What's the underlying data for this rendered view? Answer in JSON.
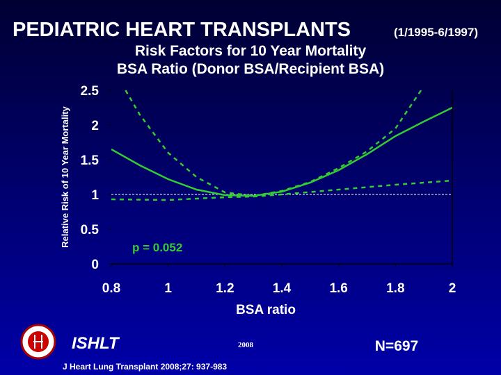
{
  "chart_data": {
    "type": "line",
    "title": "PEDIATRIC HEART TRANSPLANTS",
    "title_period": "(1/1995-6/1997)",
    "subtitle": "Risk Factors for 10 Year Mortality",
    "subtitle2": "BSA Ratio (Donor BSA/Recipient BSA)",
    "y_label": "Relative Risk of 10 Year Mortality",
    "x_label": "BSA ratio",
    "annotation": "p = 0.052",
    "xlim": [
      0.8,
      2
    ],
    "xticks": [
      0.8,
      1,
      1.2,
      1.4,
      1.6,
      1.8,
      2
    ],
    "ylim": [
      0,
      2.5
    ],
    "yticks": [
      0,
      0.5,
      1,
      1.5,
      2,
      2.5
    ],
    "reference_line": 1,
    "series": [
      {
        "style": "solid",
        "color": "#33cc33",
        "x": [
          0.8,
          0.9,
          1.0,
          1.1,
          1.2,
          1.3,
          1.4,
          1.5,
          1.6,
          1.7,
          1.8,
          1.9,
          2.0
        ],
        "values": [
          1.65,
          1.42,
          1.22,
          1.07,
          0.99,
          0.98,
          1.04,
          1.17,
          1.35,
          1.58,
          1.84,
          2.05,
          2.25
        ]
      },
      {
        "style": "dashed",
        "color": "#33cc33",
        "x": [
          0.85,
          0.9,
          1.0,
          1.1,
          1.2,
          1.3,
          1.4,
          1.5,
          1.6,
          1.7,
          1.8,
          1.89
        ],
        "values": [
          2.5,
          2.15,
          1.6,
          1.25,
          1.03,
          0.98,
          1.05,
          1.18,
          1.38,
          1.62,
          1.95,
          2.5
        ]
      },
      {
        "style": "dashed",
        "color": "#33cc33",
        "x": [
          0.8,
          1.0,
          1.2,
          1.3,
          1.4,
          1.6,
          1.8,
          2.0
        ],
        "values": [
          0.93,
          0.92,
          0.96,
          0.97,
          1.0,
          1.07,
          1.14,
          1.2
        ]
      }
    ]
  },
  "footer": {
    "org": "ISHLT",
    "year": "2008",
    "n": "N=697",
    "citation": "J Heart Lung Transplant 2008;27: 937-983"
  }
}
